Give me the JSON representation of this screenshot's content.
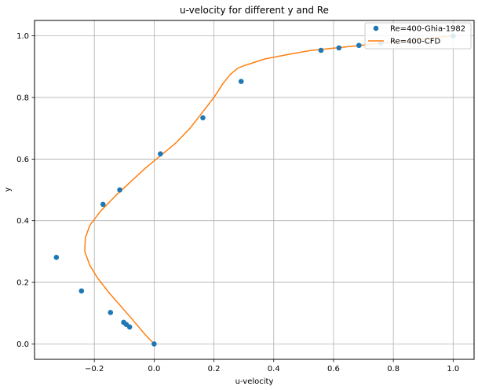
{
  "chart_data": {
    "type": "scatter",
    "title": "u-velocity for different y and Re",
    "xlabel": "u-velocity",
    "ylabel": "y",
    "xlim": [
      -0.4,
      1.07
    ],
    "ylim": [
      1.05,
      -0.05
    ],
    "y_inverted": true,
    "xticks": [
      -0.2,
      0.0,
      0.2,
      0.4,
      0.6,
      0.8,
      1.0
    ],
    "xtick_labels": [
      "−0.2",
      "0.0",
      "0.2",
      "0.4",
      "0.6",
      "0.8",
      "1.0"
    ],
    "yticks": [
      0.0,
      0.2,
      0.4,
      0.6,
      0.8,
      1.0
    ],
    "ytick_labels": [
      "0.0",
      "0.2",
      "0.4",
      "0.6",
      "0.8",
      "1.0"
    ],
    "grid": true,
    "legend_position": "top-right",
    "series": [
      {
        "name": "Re=400-Ghia-1982",
        "kind": "scatter",
        "color": "#1f77b4",
        "points": [
          {
            "x": 0.0,
            "y": 0.0
          },
          {
            "x": -0.082,
            "y": 0.055
          },
          {
            "x": -0.093,
            "y": 0.063
          },
          {
            "x": -0.102,
            "y": 0.07
          },
          {
            "x": -0.146,
            "y": 0.102
          },
          {
            "x": -0.243,
            "y": 0.172
          },
          {
            "x": -0.327,
            "y": 0.281
          },
          {
            "x": -0.171,
            "y": 0.453
          },
          {
            "x": -0.115,
            "y": 0.5
          },
          {
            "x": 0.021,
            "y": 0.617
          },
          {
            "x": 0.163,
            "y": 0.734
          },
          {
            "x": 0.291,
            "y": 0.852
          },
          {
            "x": 0.558,
            "y": 0.953
          },
          {
            "x": 0.618,
            "y": 0.961
          },
          {
            "x": 0.685,
            "y": 0.969
          },
          {
            "x": 0.758,
            "y": 0.977
          },
          {
            "x": 1.0,
            "y": 1.0
          }
        ]
      },
      {
        "name": "Re=400-CFD",
        "kind": "line",
        "color": "#ff7f0e",
        "points": [
          {
            "x": 0.0,
            "y": 0.0
          },
          {
            "x": -0.03,
            "y": 0.03
          },
          {
            "x": -0.06,
            "y": 0.065
          },
          {
            "x": -0.1,
            "y": 0.11
          },
          {
            "x": -0.15,
            "y": 0.165
          },
          {
            "x": -0.19,
            "y": 0.215
          },
          {
            "x": -0.215,
            "y": 0.255
          },
          {
            "x": -0.232,
            "y": 0.3
          },
          {
            "x": -0.23,
            "y": 0.345
          },
          {
            "x": -0.215,
            "y": 0.385
          },
          {
            "x": -0.18,
            "y": 0.43
          },
          {
            "x": -0.13,
            "y": 0.48
          },
          {
            "x": -0.08,
            "y": 0.525
          },
          {
            "x": -0.03,
            "y": 0.57
          },
          {
            "x": 0.02,
            "y": 0.61
          },
          {
            "x": 0.07,
            "y": 0.65
          },
          {
            "x": 0.12,
            "y": 0.7
          },
          {
            "x": 0.16,
            "y": 0.75
          },
          {
            "x": 0.2,
            "y": 0.8
          },
          {
            "x": 0.23,
            "y": 0.845
          },
          {
            "x": 0.255,
            "y": 0.875
          },
          {
            "x": 0.28,
            "y": 0.895
          },
          {
            "x": 0.3,
            "y": 0.903
          },
          {
            "x": 0.37,
            "y": 0.925
          },
          {
            "x": 0.45,
            "y": 0.94
          },
          {
            "x": 0.52,
            "y": 0.952
          },
          {
            "x": 0.6,
            "y": 0.96
          },
          {
            "x": 0.7,
            "y": 0.97
          },
          {
            "x": 0.8,
            "y": 0.98
          },
          {
            "x": 0.9,
            "y": 0.99
          },
          {
            "x": 1.0,
            "y": 1.0
          }
        ]
      }
    ]
  }
}
